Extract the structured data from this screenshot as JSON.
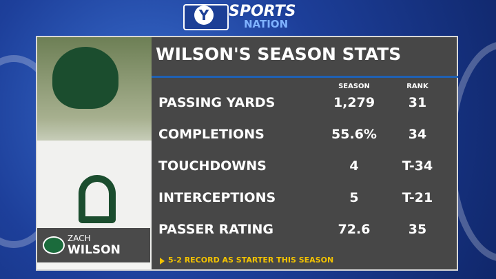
{
  "logo": {
    "mark": "Y",
    "sports": "SPORTS",
    "nation": "NATION"
  },
  "title": "WILSON'S SEASON STATS",
  "player": {
    "first": "ZACH",
    "last": "WILSON"
  },
  "table": {
    "columns": [
      "SEASON",
      "RANK"
    ],
    "rows": [
      [
        "PASSING YARDS",
        "1,279",
        "31"
      ],
      [
        "COMPLETIONS",
        "55.6%",
        "34"
      ],
      [
        "TOUCHDOWNS",
        "4",
        "T-34"
      ],
      [
        "INTERCEPTIONS",
        "5",
        "T-21"
      ],
      [
        "PASSER RATING",
        "72.6",
        "35"
      ]
    ]
  },
  "footnote": "5-2 RECORD AS STARTER THIS SEASON"
}
